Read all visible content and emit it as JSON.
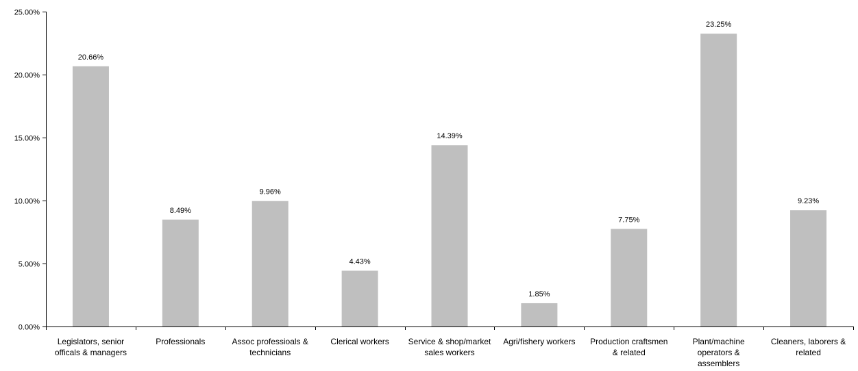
{
  "chart_data": {
    "type": "bar",
    "title": "",
    "xlabel": "",
    "ylabel": "",
    "ylim": [
      0,
      25
    ],
    "yticks": [
      0,
      5,
      10,
      15,
      20,
      25
    ],
    "ytick_labels": [
      "0.00%",
      "5.00%",
      "10.00%",
      "15.00%",
      "20.00%",
      "25.00%"
    ],
    "grid": false,
    "legend": "none",
    "bar_color": "#bfbfbf",
    "categories": [
      [
        "Legislators, senior",
        "officals & managers"
      ],
      [
        "Professionals"
      ],
      [
        "Assoc professioals &",
        "technicians"
      ],
      [
        "Clerical workers"
      ],
      [
        "Service & shop/market",
        "sales workers"
      ],
      [
        "Agri/fishery workers"
      ],
      [
        "Production craftsmen",
        "& related"
      ],
      [
        "Plant/machine",
        "operators &",
        "assemblers"
      ],
      [
        "Cleaners, laborers &",
        "related"
      ]
    ],
    "values": [
      20.66,
      8.49,
      9.96,
      4.43,
      14.39,
      1.85,
      7.75,
      23.25,
      9.23
    ],
    "value_labels": [
      "20.66%",
      "8.49%",
      "9.96%",
      "4.43%",
      "14.39%",
      "1.85%",
      "7.75%",
      "23.25%",
      "9.23%"
    ]
  }
}
